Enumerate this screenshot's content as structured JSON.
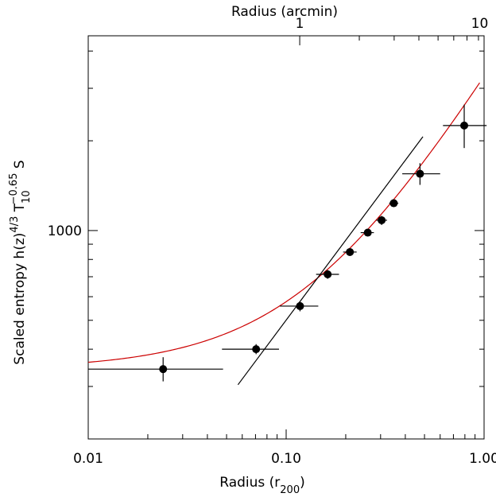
{
  "chart_data": {
    "type": "scatter",
    "x_scale": "log",
    "y_scale": "log",
    "xlim": [
      0.01,
      1.0
    ],
    "ylim": [
      200,
      4500
    ],
    "xlabel": "Radius (r",
    "xlabel_sub": "200",
    "xlabel_end": ")",
    "top_xlabel": "Radius (arcmin)",
    "ylabel_parts": {
      "main": "Scaled entropy h(z)",
      "sup1": "4/3",
      "t": " T",
      "sub": "10",
      "sup2": "−0.65",
      "end": " S"
    },
    "x_tick_labels": [
      {
        "value": 0.01,
        "label": "0.01"
      },
      {
        "value": 0.1,
        "label": "0.10"
      },
      {
        "value": 1.0,
        "label": "1.00"
      }
    ],
    "top_tick_labels": [
      {
        "value": 0.1171,
        "label": "1"
      },
      {
        "value": 0.95,
        "label": "10"
      }
    ],
    "y_tick_labels": [
      {
        "value": 1000,
        "label": "1000"
      }
    ],
    "points": [
      {
        "x": 0.0239,
        "y": 343,
        "xerr": [
          0.01,
          0.048
        ],
        "yerr": [
          312,
          376
        ]
      },
      {
        "x": 0.0705,
        "y": 400,
        "xerr": [
          0.0474,
          0.092
        ],
        "yerr": [
          385,
          416
        ]
      },
      {
        "x": 0.1175,
        "y": 558,
        "xerr": [
          0.093,
          0.1453
        ],
        "yerr": [
          536,
          579
        ]
      },
      {
        "x": 0.1621,
        "y": 713,
        "xerr": [
          0.1417,
          0.1849
        ],
        "yerr": [
          689,
          737
        ]
      },
      {
        "x": 0.2099,
        "y": 847,
        "xerr": [
          0.194,
          0.2271
        ],
        "yerr": [
          831,
          866
        ]
      },
      {
        "x": 0.2584,
        "y": 984,
        "xerr": [
          0.2379,
          0.2775
        ],
        "yerr": [
          957,
          1012
        ]
      },
      {
        "x": 0.3037,
        "y": 1083,
        "xerr": [
          0.2853,
          0.3233
        ],
        "yerr": [
          1044,
          1120
        ]
      },
      {
        "x": 0.3497,
        "y": 1235,
        "xerr": [
          0.3316,
          0.3687
        ],
        "yerr": [
          1199,
          1273
        ]
      },
      {
        "x": 0.4745,
        "y": 1550,
        "xerr": [
          0.386,
          0.6
        ],
        "yerr": [
          1423,
          1682
        ]
      },
      {
        "x": 0.7937,
        "y": 2250,
        "xerr": [
          0.62,
          1.03
        ],
        "yerr": [
          1891,
          2644
        ]
      }
    ],
    "black_line": {
      "x": [
        0.0571,
        0.4909
      ],
      "y": [
        304,
        2065
      ]
    },
    "red_curve": {
      "x0": 0.01,
      "y0": 343,
      "slope": 1.1
    },
    "colors": {
      "points": "#000000",
      "black_line": "#000000",
      "red_curve": "#cc0000"
    }
  }
}
